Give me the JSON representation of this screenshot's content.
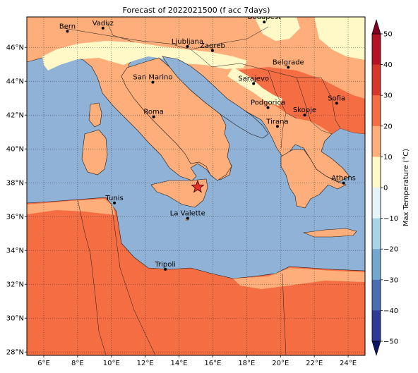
{
  "map": {
    "title": "Forecast of 2022021500 (f acc 7days)",
    "lon_range": [
      5,
      25
    ],
    "lat_range": [
      27.8,
      47.8
    ],
    "lon_ticks": [
      6,
      8,
      10,
      12,
      14,
      16,
      18,
      20,
      22,
      24
    ],
    "lat_ticks": [
      28,
      30,
      32,
      34,
      36,
      38,
      40,
      42,
      44,
      46
    ],
    "lon_tick_labels": [
      "6°E",
      "8°E",
      "10°E",
      "12°E",
      "14°E",
      "16°E",
      "18°E",
      "20°E",
      "22°E",
      "24°E"
    ],
    "lat_tick_labels": [
      "28°N",
      "30°N",
      "32°N",
      "34°N",
      "36°N",
      "38°N",
      "40°N",
      "42°N",
      "44°N",
      "46°N"
    ],
    "grid": "dotted",
    "colors": {
      "sea": "#8fb2d6",
      "land_10_20": "#fdae7a",
      "land_20_30": "#f46d43",
      "land_0_10": "#fff9c8",
      "borders": "#1a1a1a",
      "marker": "#e8312c"
    },
    "cities": [
      {
        "name": "Bern",
        "lon": 7.4,
        "lat": 46.95
      },
      {
        "name": "Vaduz",
        "lon": 9.5,
        "lat": 47.14
      },
      {
        "name": "Budapest",
        "lon": 19.04,
        "lat": 47.5
      },
      {
        "name": "Ljubljana",
        "lon": 14.5,
        "lat": 46.05
      },
      {
        "name": "Zagreb",
        "lon": 15.98,
        "lat": 45.81
      },
      {
        "name": "Belgrade",
        "lon": 20.46,
        "lat": 44.82
      },
      {
        "name": "San Marino",
        "lon": 12.45,
        "lat": 43.94
      },
      {
        "name": "Sarajevo",
        "lon": 18.41,
        "lat": 43.86
      },
      {
        "name": "Sofia",
        "lon": 23.32,
        "lat": 42.7
      },
      {
        "name": "Podgorica",
        "lon": 19.26,
        "lat": 42.44
      },
      {
        "name": "Skopje",
        "lon": 21.43,
        "lat": 42.0
      },
      {
        "name": "Roma",
        "lon": 12.5,
        "lat": 41.9
      },
      {
        "name": "Tirana",
        "lon": 19.82,
        "lat": 41.33
      },
      {
        "name": "Athens",
        "lon": 23.73,
        "lat": 37.98
      },
      {
        "name": "Tunis",
        "lon": 10.18,
        "lat": 36.81
      },
      {
        "name": "La Valette",
        "lon": 14.51,
        "lat": 35.9
      },
      {
        "name": "Tripoli",
        "lon": 13.19,
        "lat": 32.89
      }
    ],
    "marker": {
      "lon": 15.1,
      "lat": 37.75
    }
  },
  "colorbar": {
    "label": "Max Temperature (°C)",
    "ticks": [
      50,
      40,
      30,
      20,
      10,
      0,
      -10,
      -20,
      -30,
      -40,
      -50
    ],
    "colors": [
      "#7f0020",
      "#b31325",
      "#d6372b",
      "#f46d43",
      "#fdae7a",
      "#fff9c8",
      "#e4f4f8",
      "#a9d3e6",
      "#72a8cf",
      "#4a6fb1",
      "#2e3a96",
      "#0b1566"
    ]
  }
}
